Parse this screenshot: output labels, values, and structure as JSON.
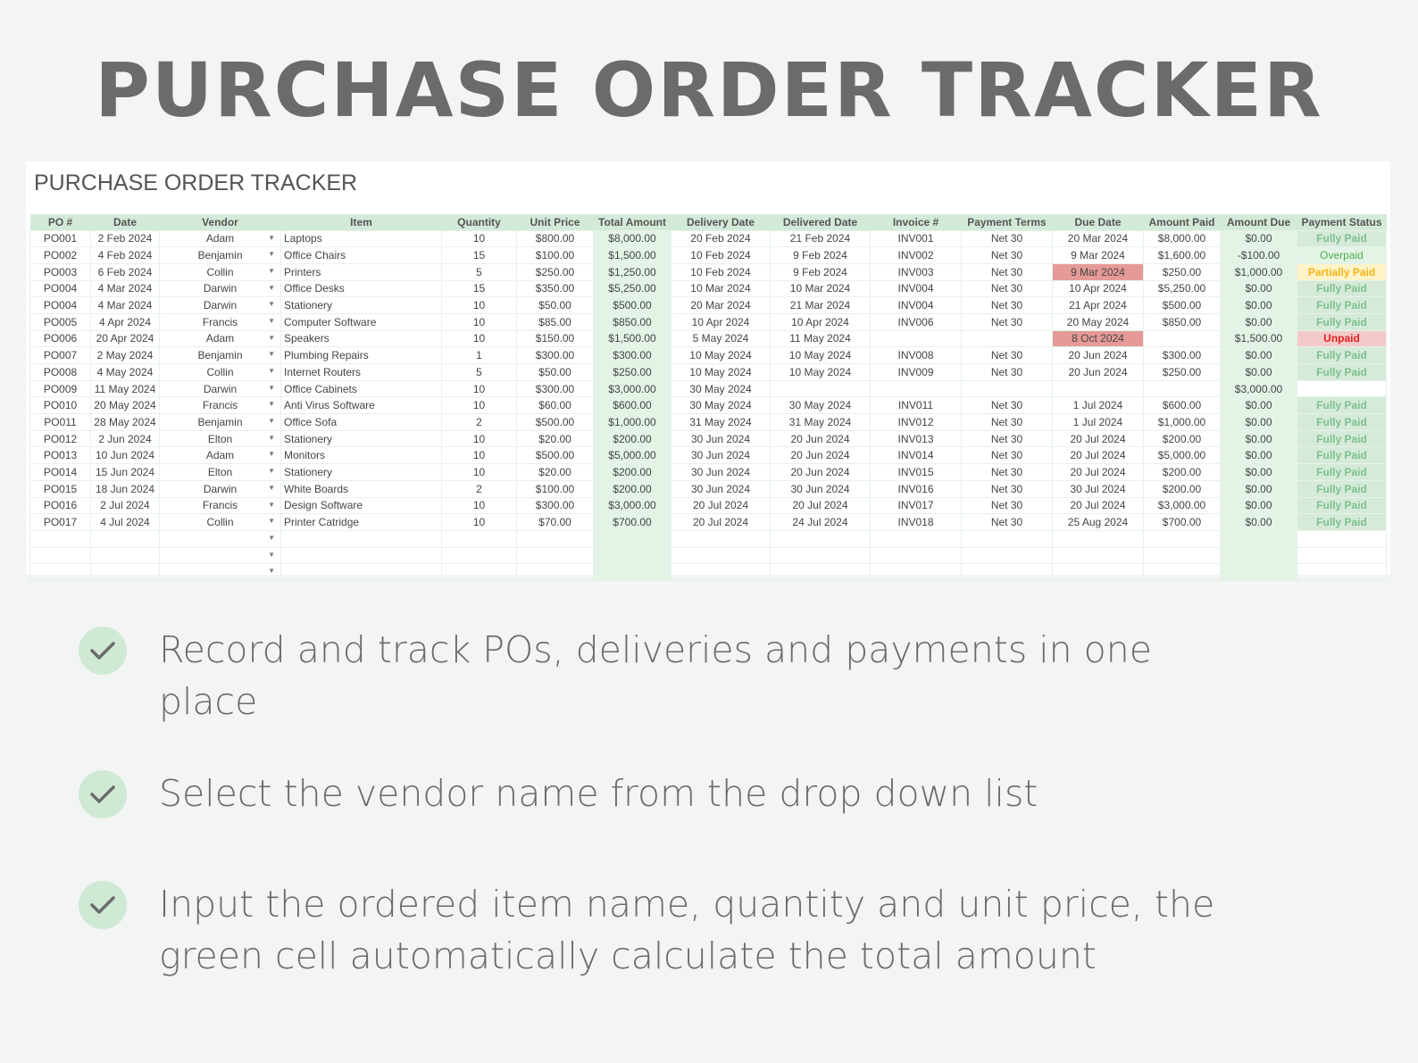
{
  "title": "PURCHASE ORDER TRACKER",
  "sheet_title": "PURCHASE ORDER TRACKER",
  "headers": [
    "PO #",
    "Date",
    "Vendor",
    "Item",
    "Quantity",
    "Unit Price",
    "Total Amount",
    "Delivery Date",
    "Delivered Date",
    "Invoice #",
    "Payment Terms",
    "Due Date",
    "Amount Paid",
    "Amount Due",
    "Payment Status"
  ],
  "rows": [
    [
      "PO001",
      "2 Feb 2024",
      "Adam",
      "Laptops",
      "10",
      "$800.00",
      "$8,000.00",
      "20 Feb 2024",
      "21 Feb 2024",
      "INV001",
      "Net 30",
      "20 Mar 2024",
      "$8,000.00",
      "$0.00",
      "Fully Paid"
    ],
    [
      "PO002",
      "4 Feb 2024",
      "Benjamin",
      "Office Chairs",
      "15",
      "$100.00",
      "$1,500.00",
      "10 Feb 2024",
      "9 Feb 2024",
      "INV002",
      "Net 30",
      "9 Mar 2024",
      "$1,600.00",
      "-$100.00",
      "Overpaid"
    ],
    [
      "PO003",
      "6 Feb 2024",
      "Collin",
      "Printers",
      "5",
      "$250.00",
      "$1,250.00",
      "10 Feb 2024",
      "9 Feb 2024",
      "INV003",
      "Net 30",
      "9 Mar 2024",
      "$250.00",
      "$1,000.00",
      "Partially Paid"
    ],
    [
      "PO004",
      "4 Mar 2024",
      "Darwin",
      "Office Desks",
      "15",
      "$350.00",
      "$5,250.00",
      "10 Mar 2024",
      "10 Mar 2024",
      "INV004",
      "Net 30",
      "10 Apr 2024",
      "$5,250.00",
      "$0.00",
      "Fully Paid"
    ],
    [
      "PO004",
      "4 Mar 2024",
      "Darwin",
      "Stationery",
      "10",
      "$50.00",
      "$500.00",
      "20 Mar 2024",
      "21 Mar 2024",
      "INV004",
      "Net 30",
      "21 Apr 2024",
      "$500.00",
      "$0.00",
      "Fully Paid"
    ],
    [
      "PO005",
      "4 Apr 2024",
      "Francis",
      "Computer Software",
      "10",
      "$85.00",
      "$850.00",
      "10 Apr 2024",
      "10 Apr 2024",
      "INV006",
      "Net 30",
      "20 May 2024",
      "$850.00",
      "$0.00",
      "Fully Paid"
    ],
    [
      "PO006",
      "20 Apr 2024",
      "Adam",
      "Speakers",
      "10",
      "$150.00",
      "$1,500.00",
      "5 May 2024",
      "11 May 2024",
      "",
      "",
      "8 Oct 2024",
      "",
      "$1,500.00",
      "Unpaid"
    ],
    [
      "PO007",
      "2 May 2024",
      "Benjamin",
      "Plumbing Repairs",
      "1",
      "$300.00",
      "$300.00",
      "10 May 2024",
      "10 May 2024",
      "INV008",
      "Net 30",
      "20 Jun 2024",
      "$300.00",
      "$0.00",
      "Fully Paid"
    ],
    [
      "PO008",
      "4 May 2024",
      "Collin",
      "Internet Routers",
      "5",
      "$50.00",
      "$250.00",
      "10 May 2024",
      "10 May 2024",
      "INV009",
      "Net 30",
      "20 Jun 2024",
      "$250.00",
      "$0.00",
      "Fully Paid"
    ],
    [
      "PO009",
      "11 May 2024",
      "Darwin",
      "Office Cabinets",
      "10",
      "$300.00",
      "$3,000.00",
      "30 May 2024",
      "",
      "",
      "",
      "",
      "",
      "$3,000.00",
      ""
    ],
    [
      "PO010",
      "20 May 2024",
      "Francis",
      "Anti Virus Software",
      "10",
      "$60.00",
      "$600.00",
      "30 May 2024",
      "30 May 2024",
      "INV011",
      "Net 30",
      "1 Jul 2024",
      "$600.00",
      "$0.00",
      "Fully Paid"
    ],
    [
      "PO011",
      "28 May 2024",
      "Benjamin",
      "Office Sofa",
      "2",
      "$500.00",
      "$1,000.00",
      "31 May 2024",
      "31 May 2024",
      "INV012",
      "Net 30",
      "1 Jul 2024",
      "$1,000.00",
      "$0.00",
      "Fully Paid"
    ],
    [
      "PO012",
      "2 Jun 2024",
      "Elton",
      "Stationery",
      "10",
      "$20.00",
      "$200.00",
      "30 Jun 2024",
      "20 Jun 2024",
      "INV013",
      "Net 30",
      "20 Jul 2024",
      "$200.00",
      "$0.00",
      "Fully Paid"
    ],
    [
      "PO013",
      "10 Jun 2024",
      "Adam",
      "Monitors",
      "10",
      "$500.00",
      "$5,000.00",
      "30 Jun 2024",
      "20 Jun 2024",
      "INV014",
      "Net 30",
      "20 Jul 2024",
      "$5,000.00",
      "$0.00",
      "Fully Paid"
    ],
    [
      "PO014",
      "15 Jun 2024",
      "Elton",
      "Stationery",
      "10",
      "$20.00",
      "$200.00",
      "30 Jun 2024",
      "20 Jun 2024",
      "INV015",
      "Net 30",
      "20 Jul 2024",
      "$200.00",
      "$0.00",
      "Fully Paid"
    ],
    [
      "PO015",
      "18 Jun 2024",
      "Darwin",
      "White Boards",
      "2",
      "$100.00",
      "$200.00",
      "30 Jun 2024",
      "30 Jun 2024",
      "INV016",
      "Net 30",
      "30 Jul 2024",
      "$200.00",
      "$0.00",
      "Fully Paid"
    ],
    [
      "PO016",
      "2 Jul 2024",
      "Francis",
      "Design Software",
      "10",
      "$300.00",
      "$3,000.00",
      "20 Jul 2024",
      "20 Jul 2024",
      "INV017",
      "Net 30",
      "20 Jul 2024",
      "$3,000.00",
      "$0.00",
      "Fully Paid"
    ],
    [
      "PO017",
      "4 Jul 2024",
      "Collin",
      "Printer Catridge",
      "10",
      "$70.00",
      "$700.00",
      "20 Jul 2024",
      "24 Jul 2024",
      "INV018",
      "Net 30",
      "25 Aug 2024",
      "$700.00",
      "$0.00",
      "Fully Paid"
    ]
  ],
  "empty_rows": 3,
  "late_due_rows": [
    2,
    6
  ],
  "colors": {
    "header": "#d3ead9",
    "accent_green": "#e3f3e6",
    "overdue": "#e59a98",
    "fully_paid": "#7cc08e",
    "partially_paid": "#f3b416",
    "unpaid": "#e02020"
  },
  "features": [
    {
      "icon": "check-icon",
      "text": "Record and track POs, deliveries and payments in one place"
    },
    {
      "icon": "check-icon",
      "text": "Select the vendor name from the drop down list"
    },
    {
      "icon": "check-icon",
      "text": "Input the ordered item name, quantity and unit price, the green cell automatically calculate the total amount"
    }
  ]
}
